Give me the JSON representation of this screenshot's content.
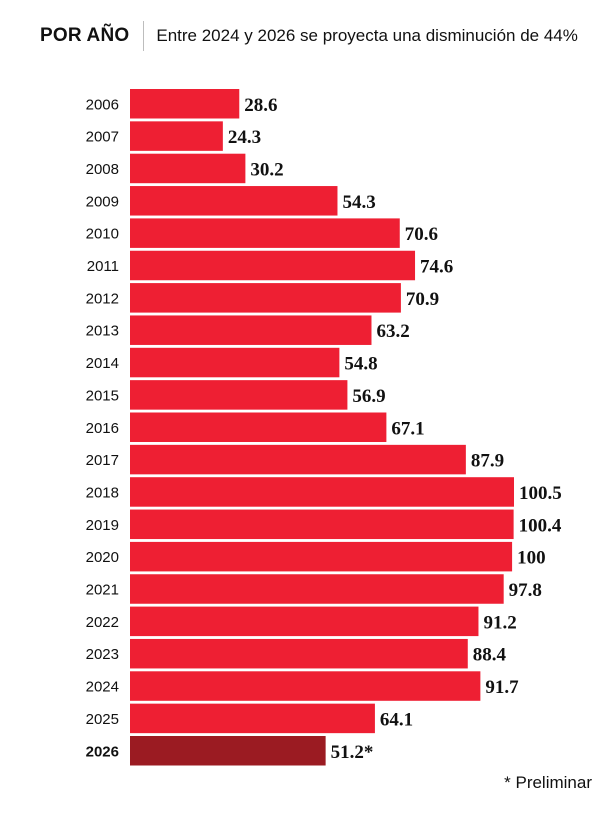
{
  "header": {
    "label": "POR AÑO",
    "subtitle": "Entre 2024 y 2026 se proyecta una disminución de 44%"
  },
  "footnote": "*  Preliminar",
  "colors": {
    "bar": "#ee1f33",
    "highlight": "#9b1b22"
  },
  "chart_data": {
    "type": "bar",
    "orientation": "horizontal",
    "title": "",
    "xlabel": "",
    "ylabel": "",
    "categories": [
      "2006",
      "2007",
      "2008",
      "2009",
      "2010",
      "2011",
      "2012",
      "2013",
      "2014",
      "2015",
      "2016",
      "2017",
      "2018",
      "2019",
      "2020",
      "2021",
      "2022",
      "2023",
      "2024",
      "2025",
      "2026"
    ],
    "values": [
      28.6,
      24.3,
      30.2,
      54.3,
      70.6,
      74.6,
      70.9,
      63.2,
      54.8,
      56.9,
      67.1,
      87.9,
      100.5,
      100.4,
      100,
      97.8,
      91.2,
      88.4,
      91.7,
      64.1,
      51.2
    ],
    "value_labels": [
      "28.6",
      "24.3",
      "30.2",
      "54.3",
      "70.6",
      "74.6",
      "70.9",
      "63.2",
      "54.8",
      "56.9",
      "67.1",
      "87.9",
      "100.5",
      "100.4",
      "100",
      "97.8",
      "91.2",
      "88.4",
      "91.7",
      "64.1",
      "51.2*"
    ],
    "highlight_category": "2026",
    "xlim": [
      0,
      100.5
    ],
    "grid": false,
    "legend": "none"
  }
}
